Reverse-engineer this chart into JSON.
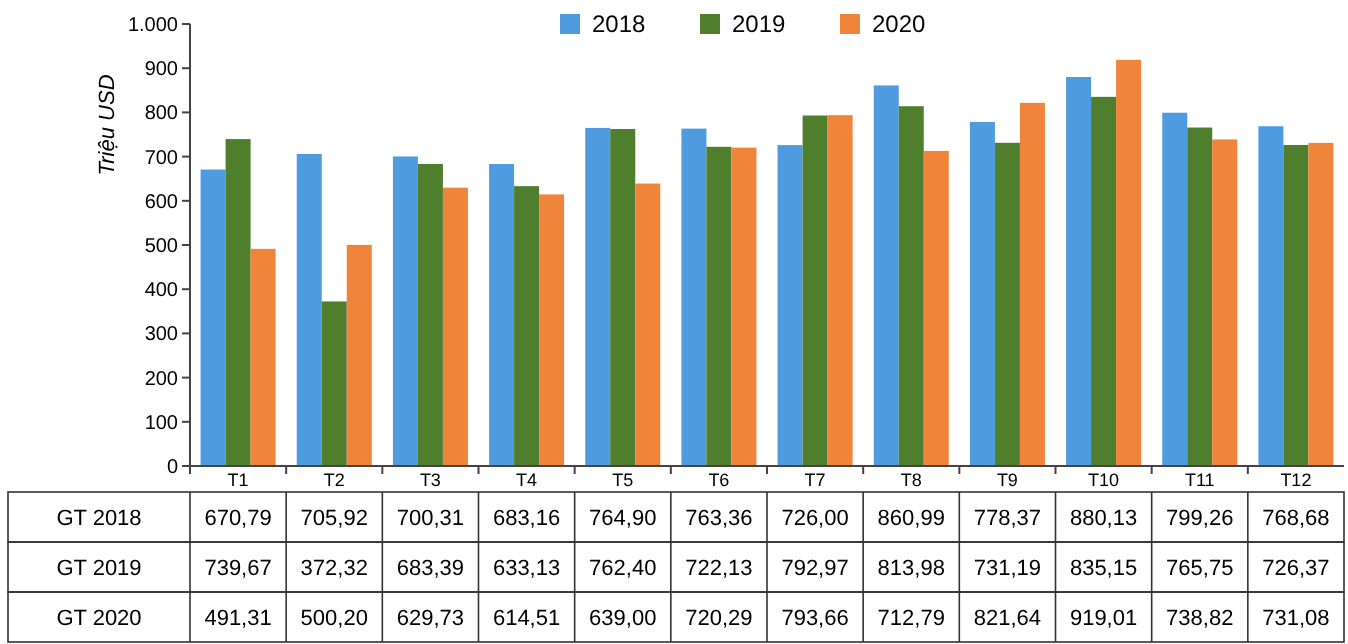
{
  "chart_data": {
    "type": "bar",
    "ylabel": "Triệu USD",
    "categories": [
      "T1",
      "T2",
      "T3",
      "T4",
      "T5",
      "T6",
      "T7",
      "T8",
      "T9",
      "T10",
      "T11",
      "T12"
    ],
    "series": [
      {
        "name": "2018",
        "color": "#4f9be0",
        "values": [
          670.79,
          705.92,
          700.31,
          683.16,
          764.9,
          763.36,
          726.0,
          860.99,
          778.37,
          880.13,
          799.26,
          768.68
        ],
        "value_labels": [
          "670,79",
          "705,92",
          "700,31",
          "683,16",
          "764,90",
          "763,36",
          "726,00",
          "860,99",
          "778,37",
          "880,13",
          "799,26",
          "768,68"
        ]
      },
      {
        "name": "2019",
        "color": "#4f7f2c",
        "values": [
          739.67,
          372.32,
          683.39,
          633.13,
          762.4,
          722.13,
          792.97,
          813.98,
          731.19,
          835.15,
          765.75,
          726.37
        ],
        "value_labels": [
          "739,67",
          "372,32",
          "683,39",
          "633,13",
          "762,40",
          "722,13",
          "792,97",
          "813,98",
          "731,19",
          "835,15",
          "765,75",
          "726,37"
        ]
      },
      {
        "name": "2020",
        "color": "#f0843a",
        "values": [
          491.31,
          500.2,
          629.73,
          614.51,
          639.0,
          720.29,
          793.66,
          712.79,
          821.64,
          919.01,
          738.82,
          731.08
        ],
        "value_labels": [
          "491,31",
          "500,20",
          "629,73",
          "614,51",
          "639,00",
          "720,29",
          "793,66",
          "712,79",
          "821,64",
          "919,01",
          "738,82",
          "731,08"
        ]
      }
    ],
    "annotations": [
      "GT 2018",
      "GT 2019",
      "GT 2020"
    ],
    "ylim": [
      0,
      1000
    ],
    "yticks": [
      0,
      100,
      200,
      300,
      400,
      500,
      600,
      700,
      800,
      900,
      {
        "value": 1000,
        "label": "1.000"
      }
    ],
    "grid": false,
    "legend": "top"
  }
}
